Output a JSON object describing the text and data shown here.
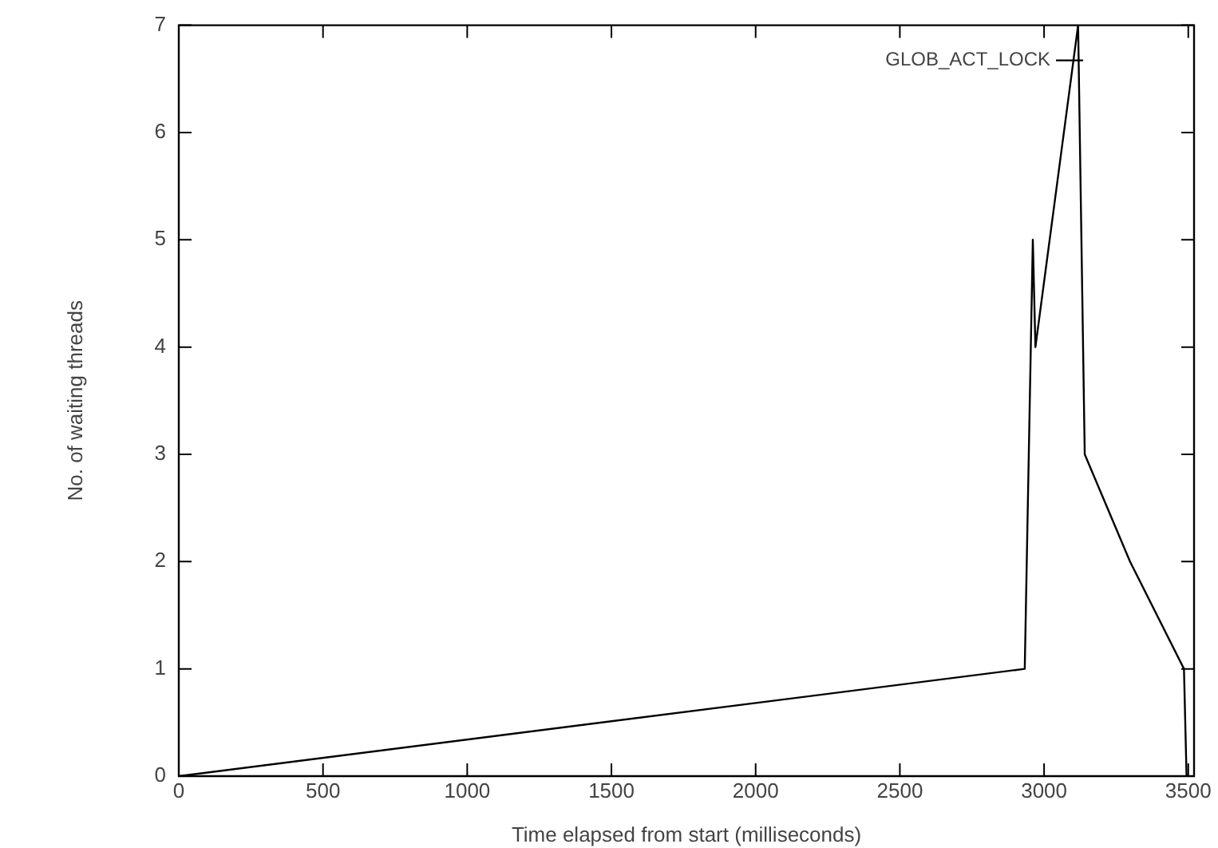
{
  "chart_data": {
    "type": "line",
    "xlabel": "Time elapsed from start (milliseconds)",
    "ylabel": "No. of waiting threads",
    "series": [
      {
        "name": "GLOB_ACT_LOCK",
        "color": "#000000",
        "x": [
          0,
          2933,
          2961,
          2970,
          3118,
          3141,
          3298,
          3485,
          3494
        ],
        "values": [
          0,
          1,
          5,
          4,
          7,
          3,
          2,
          1,
          0
        ]
      }
    ],
    "xlim": [
      0,
      3520
    ],
    "xticks": [
      0,
      500,
      1000,
      1500,
      2000,
      2500,
      3000,
      3500
    ],
    "ylim": [
      0,
      7
    ],
    "yticks": [
      0,
      1,
      2,
      3,
      4,
      5,
      6,
      7
    ],
    "grid": false,
    "legend": "top right",
    "marker": "none",
    "line_style": "solid"
  }
}
